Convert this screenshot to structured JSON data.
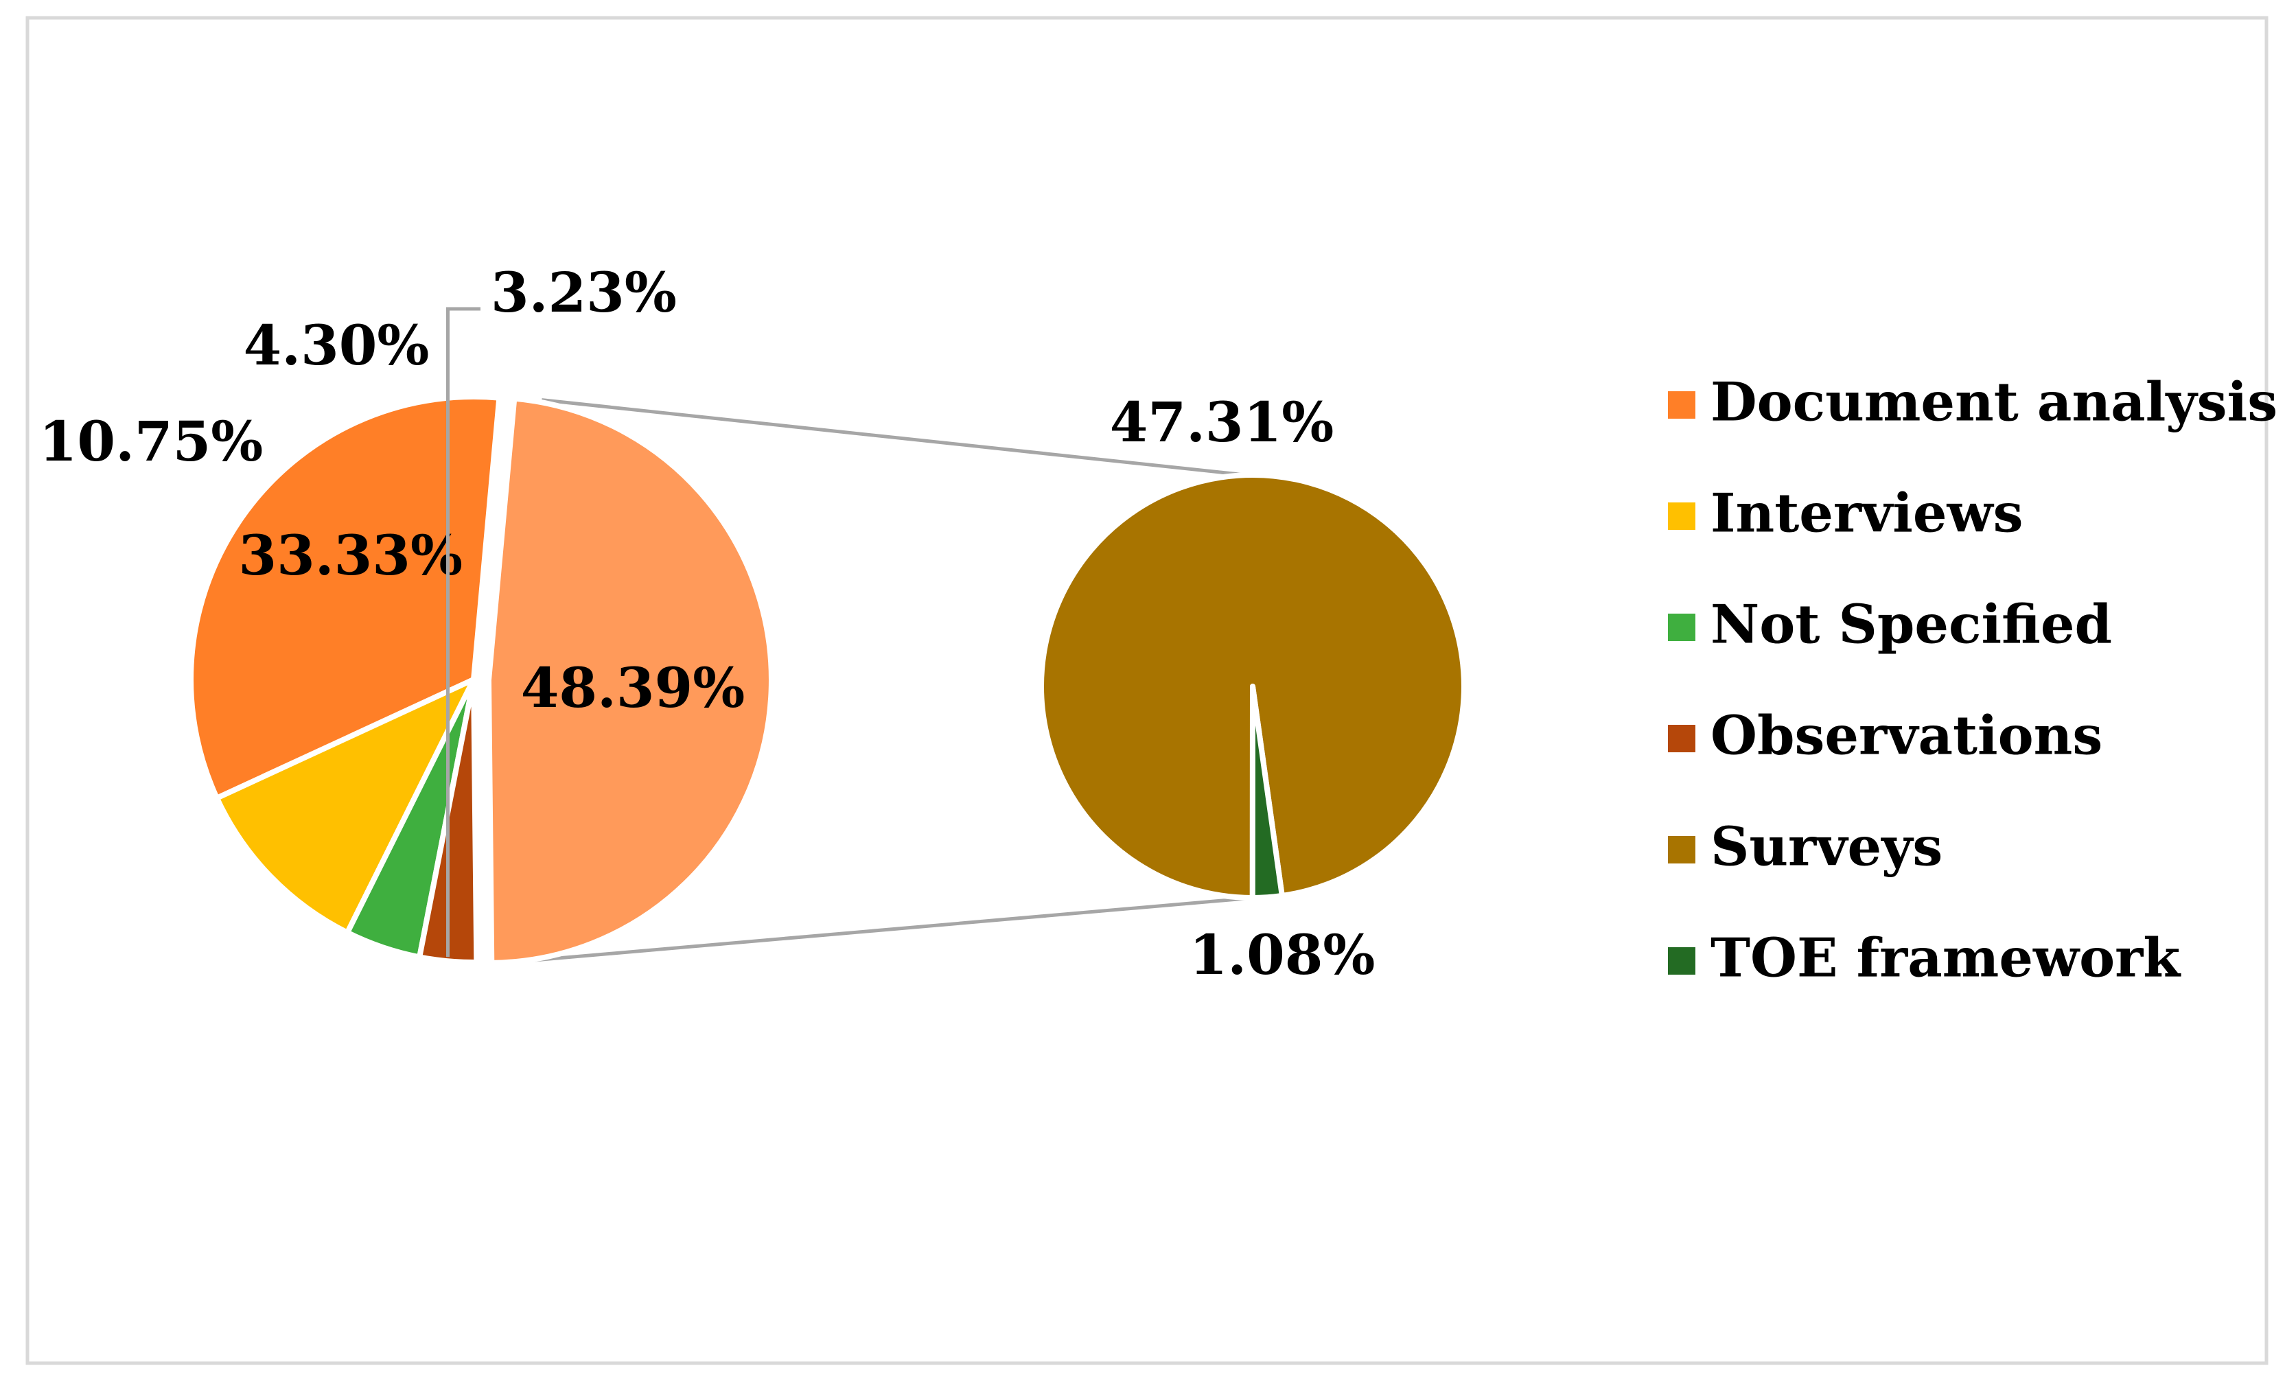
{
  "chart_data": {
    "type": "pie",
    "subtype": "pie-of-pie",
    "series": [
      {
        "name": "Document analysis",
        "value": 33.33,
        "label": "33.33%",
        "color": "#FF7F27"
      },
      {
        "name": "Interviews",
        "value": 10.75,
        "label": "10.75%",
        "color": "#FFC000"
      },
      {
        "name": "Not Specified",
        "value": 4.3,
        "label": "4.30%",
        "color": "#3FAF3F"
      },
      {
        "name": "Observations",
        "value": 3.23,
        "label": "3.23%",
        "color": "#B5470A"
      },
      {
        "name": "Surveys",
        "value": 47.31,
        "label": "47.31%",
        "color": "#A87400"
      },
      {
        "name": "TOE framework",
        "value": 1.08,
        "label": "1.08%",
        "color": "#236B23"
      }
    ],
    "other_slice": {
      "value": 48.39,
      "label": "48.39%",
      "color": "#FF9A5A",
      "members": [
        "Surveys",
        "TOE framework"
      ]
    },
    "legend_position": "right",
    "connector_color": "#A6A6A6",
    "frame_color": "#D9D9D9"
  }
}
